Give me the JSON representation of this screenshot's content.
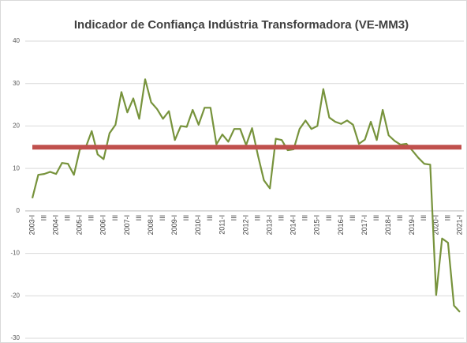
{
  "chart_data": {
    "type": "line",
    "title": "Indicador de Confiança Indústria Transformadora (VE-MM3)",
    "categories": [
      "2003-I",
      null,
      "III",
      null,
      "2004-I",
      null,
      "III",
      null,
      "2005-I",
      null,
      "III",
      null,
      "2006-I",
      null,
      "III",
      null,
      "2007-I",
      null,
      "III",
      null,
      "2008-I",
      null,
      "III",
      null,
      "2009-I",
      null,
      "III",
      null,
      "2010-I",
      null,
      "III",
      null,
      "2011-I",
      null,
      "III",
      null,
      "2012-I",
      null,
      "III",
      null,
      "2013-I",
      null,
      "III",
      null,
      "2014-I",
      null,
      "III",
      null,
      "2015-I",
      null,
      "III",
      null,
      "2016-I",
      null,
      "III",
      null,
      "2017-I",
      null,
      "III",
      null,
      "2018-I",
      null,
      "III",
      null,
      "2019-I",
      null,
      "III",
      null,
      "2020-I",
      null,
      "III",
      null,
      "2021-I"
    ],
    "series": [
      {
        "color": "#77933c",
        "values": [
          3,
          8.5,
          8.7,
          9.2,
          8.7,
          11.3,
          11.1,
          8.5,
          14.5,
          15,
          18.8,
          13.3,
          12.2,
          18.3,
          20.3,
          28,
          23.2,
          26.5,
          21.7,
          31,
          25.6,
          24,
          21.7,
          23.5,
          16.7,
          20,
          19.8,
          23.8,
          20.3,
          24.3,
          24.3,
          15.7,
          18,
          16.3,
          19.3,
          19.3,
          15.5,
          19.5,
          13,
          7.2,
          5.3,
          17,
          16.7,
          14.3,
          14.5,
          19.3,
          21.3,
          19.3,
          20,
          28.7,
          22,
          21,
          20.5,
          21.3,
          20.3,
          15.8,
          16.8,
          21,
          16.7,
          23.8,
          17.8,
          16.5,
          15.6,
          15.8,
          14.2,
          12.5,
          11.1,
          10.9,
          -19.8,
          -6.5,
          -7.5,
          -22.3,
          -23.8
        ]
      }
    ],
    "reference_line": {
      "value": 15,
      "color": "#c0504d"
    },
    "ylim": [
      -30,
      40
    ],
    "yticks": [
      -30,
      -20,
      -10,
      0,
      10,
      20,
      30,
      40
    ],
    "grid": true
  }
}
